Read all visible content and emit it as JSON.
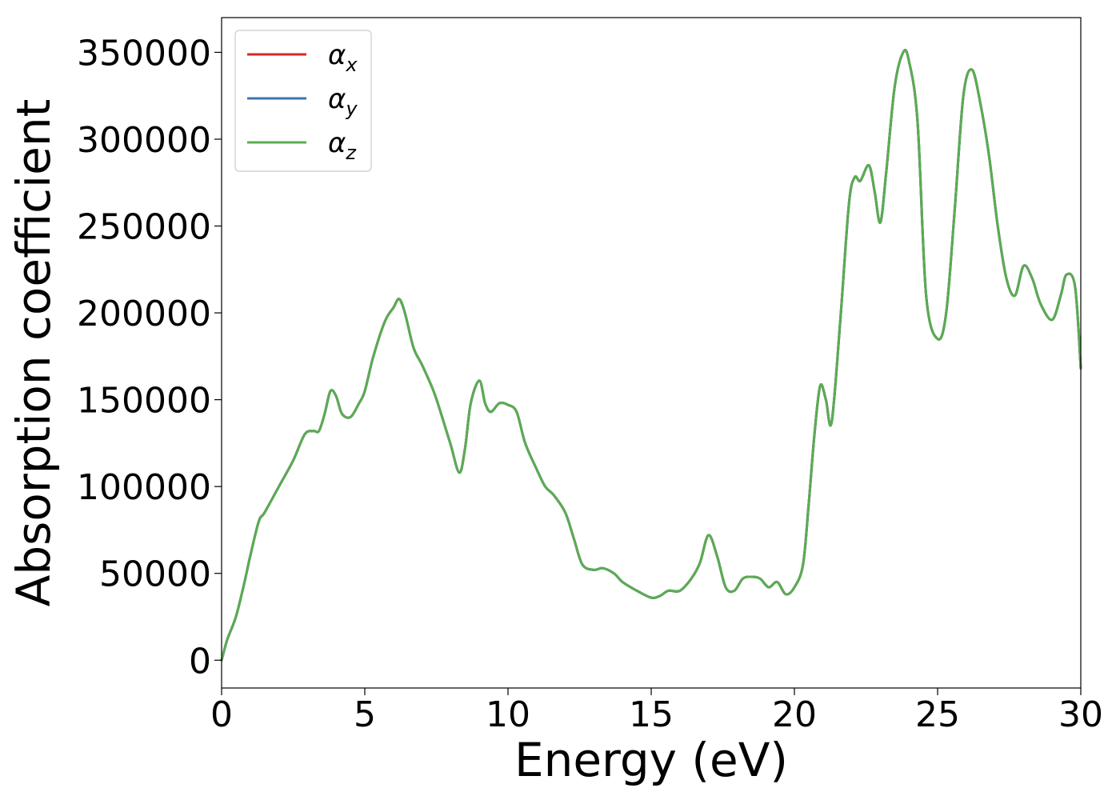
{
  "chart_data": {
    "type": "line",
    "xlabel": "Energy (eV)",
    "ylabel": "Absorption coefficient",
    "xlim": [
      0,
      30
    ],
    "ylim": [
      -16000,
      370000
    ],
    "xticks": [
      0,
      5,
      10,
      15,
      20,
      25,
      30
    ],
    "yticks": [
      0,
      50000,
      100000,
      150000,
      200000,
      250000,
      300000,
      350000
    ],
    "xtick_labels": [
      "0",
      "5",
      "10",
      "15",
      "20",
      "25",
      "30"
    ],
    "ytick_labels": [
      "0",
      "50000",
      "100000",
      "150000",
      "200000",
      "250000",
      "300000",
      "350000"
    ],
    "grid": false,
    "legend_position": "top-left",
    "x": [
      0,
      0.2,
      0.5,
      0.8,
      1.0,
      1.3,
      1.5,
      2.0,
      2.5,
      2.9,
      3.2,
      3.4,
      3.6,
      3.8,
      4.0,
      4.2,
      4.5,
      4.8,
      5.0,
      5.3,
      5.7,
      6.0,
      6.2,
      6.4,
      6.7,
      7.0,
      7.4,
      7.7,
      8.0,
      8.3,
      8.5,
      8.7,
      9.0,
      9.2,
      9.4,
      9.7,
      10.0,
      10.3,
      10.6,
      11.0,
      11.3,
      11.6,
      12.0,
      12.3,
      12.6,
      13.0,
      13.3,
      13.7,
      14.0,
      14.5,
      15.0,
      15.3,
      15.6,
      16.0,
      16.4,
      16.7,
      17.0,
      17.3,
      17.6,
      17.9,
      18.2,
      18.5,
      18.8,
      19.1,
      19.4,
      19.7,
      20.0,
      20.3,
      20.5,
      20.7,
      20.9,
      21.1,
      21.3,
      21.6,
      21.9,
      22.1,
      22.3,
      22.6,
      22.8,
      23.0,
      23.2,
      23.5,
      23.8,
      24.0,
      24.3,
      24.6,
      25.0,
      25.3,
      25.6,
      25.9,
      26.2,
      26.5,
      26.8,
      27.1,
      27.4,
      27.7,
      28.0,
      28.3,
      28.6,
      29.0,
      29.3,
      29.5,
      29.8,
      30.0
    ],
    "series": [
      {
        "name": "α_x",
        "name_base": "α",
        "name_sub": "x",
        "color": "#d62728",
        "y": [
          0,
          12000,
          25000,
          45000,
          60000,
          80000,
          85000,
          100000,
          115000,
          130000,
          132000,
          132000,
          142000,
          155000,
          152000,
          142000,
          140000,
          148000,
          155000,
          175000,
          195000,
          203000,
          208000,
          200000,
          180000,
          170000,
          155000,
          140000,
          124000,
          108000,
          122000,
          148000,
          161000,
          148000,
          143000,
          148000,
          147000,
          143000,
          125000,
          110000,
          100000,
          95000,
          85000,
          70000,
          55000,
          52000,
          53000,
          50000,
          45000,
          40000,
          36000,
          37000,
          40000,
          40000,
          47000,
          56000,
          72000,
          60000,
          42000,
          40000,
          47000,
          48000,
          47000,
          42000,
          45000,
          38000,
          42000,
          55000,
          90000,
          130000,
          158000,
          150000,
          137000,
          195000,
          262000,
          278000,
          276000,
          285000,
          270000,
          252000,
          280000,
          330000,
          350000,
          345000,
          310000,
          210000,
          185000,
          200000,
          260000,
          325000,
          340000,
          320000,
          290000,
          250000,
          220000,
          210000,
          227000,
          220000,
          205000,
          196000,
          210000,
          222000,
          215000,
          168000
        ]
      },
      {
        "name": "α_y",
        "name_base": "α",
        "name_sub": "y",
        "color": "#3b75af",
        "y": [
          0,
          12000,
          25000,
          45000,
          60000,
          80000,
          85000,
          100000,
          115000,
          130000,
          132000,
          132000,
          142000,
          155000,
          152000,
          142000,
          140000,
          148000,
          155000,
          175000,
          195000,
          203000,
          208000,
          200000,
          180000,
          170000,
          155000,
          140000,
          124000,
          108000,
          122000,
          148000,
          161000,
          148000,
          143000,
          148000,
          147000,
          143000,
          125000,
          110000,
          100000,
          95000,
          85000,
          70000,
          55000,
          52000,
          53000,
          50000,
          45000,
          40000,
          36000,
          37000,
          40000,
          40000,
          47000,
          56000,
          72000,
          60000,
          42000,
          40000,
          47000,
          48000,
          47000,
          42000,
          45000,
          38000,
          42000,
          55000,
          90000,
          130000,
          158000,
          150000,
          137000,
          195000,
          262000,
          278000,
          276000,
          285000,
          270000,
          252000,
          280000,
          330000,
          350000,
          345000,
          310000,
          210000,
          185000,
          200000,
          260000,
          325000,
          340000,
          320000,
          290000,
          250000,
          220000,
          210000,
          227000,
          220000,
          205000,
          196000,
          210000,
          222000,
          215000,
          168000
        ]
      },
      {
        "name": "α_z",
        "name_base": "α",
        "name_sub": "z",
        "color": "#5aac52",
        "y": [
          0,
          12000,
          25000,
          45000,
          60000,
          80000,
          85000,
          100000,
          115000,
          130000,
          132000,
          132000,
          142000,
          155000,
          152000,
          142000,
          140000,
          148000,
          155000,
          175000,
          195000,
          203000,
          208000,
          200000,
          180000,
          170000,
          155000,
          140000,
          124000,
          108000,
          122000,
          148000,
          161000,
          148000,
          143000,
          148000,
          147000,
          143000,
          125000,
          110000,
          100000,
          95000,
          85000,
          70000,
          55000,
          52000,
          53000,
          50000,
          45000,
          40000,
          36000,
          37000,
          40000,
          40000,
          47000,
          56000,
          72000,
          60000,
          42000,
          40000,
          47000,
          48000,
          47000,
          42000,
          45000,
          38000,
          42000,
          55000,
          90000,
          130000,
          158000,
          150000,
          137000,
          195000,
          262000,
          278000,
          276000,
          285000,
          270000,
          252000,
          280000,
          330000,
          350000,
          345000,
          310000,
          210000,
          185000,
          200000,
          260000,
          325000,
          340000,
          320000,
          290000,
          250000,
          220000,
          210000,
          227000,
          220000,
          205000,
          196000,
          210000,
          222000,
          215000,
          168000
        ]
      }
    ]
  }
}
